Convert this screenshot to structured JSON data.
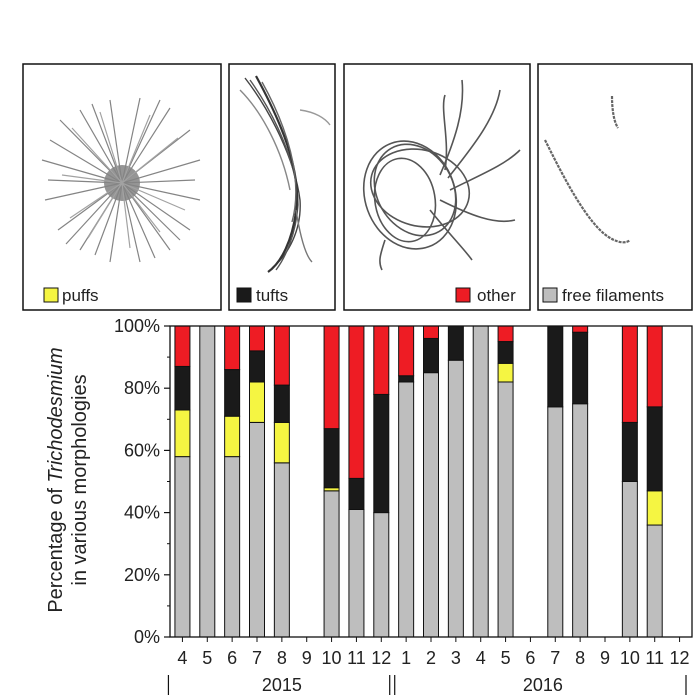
{
  "legend": [
    {
      "label": "puffs",
      "color": "#f5f542"
    },
    {
      "label": "tufts",
      "color": "#1a1a1a"
    },
    {
      "label": "other",
      "color": "#ee1c24"
    },
    {
      "label": "free filaments",
      "color": "#bebebe"
    }
  ],
  "panel_icons": [
    "puff-colony-image",
    "tuft-colony-image",
    "other-colony-image",
    "free-filament-image"
  ],
  "chart_data": {
    "type": "bar",
    "stacked": true,
    "ylabel_line1_prefix": "Percentage of ",
    "ylabel_line1_italic": "Trichodesmium",
    "ylabel_line2": "in various morphologies",
    "yticks": [
      "0%",
      "20%",
      "40%",
      "60%",
      "80%",
      "100%"
    ],
    "ylim": [
      0,
      100
    ],
    "categories": [
      "4",
      "5",
      "6",
      "7",
      "8",
      "9",
      "10",
      "11",
      "12",
      "1",
      "2",
      "3",
      "4",
      "5",
      "6",
      "7",
      "8",
      "9",
      "10",
      "11",
      "12"
    ],
    "years": [
      {
        "label": "2015",
        "start_index": 0,
        "end_index": 8
      },
      {
        "label": "2016",
        "start_index": 9,
        "end_index": 20
      }
    ],
    "series": [
      {
        "name": "free filaments",
        "color": "#bebebe",
        "values": [
          58,
          100,
          58,
          69,
          56,
          null,
          47,
          41,
          40,
          82,
          85,
          89,
          100,
          82,
          null,
          74,
          75,
          null,
          50,
          36,
          null
        ]
      },
      {
        "name": "puffs",
        "color": "#f5f542",
        "values": [
          15,
          0,
          13,
          13,
          13,
          null,
          1,
          0,
          0,
          0,
          0,
          0,
          0,
          6,
          null,
          0,
          0,
          null,
          0,
          11,
          null
        ]
      },
      {
        "name": "tufts",
        "color": "#1a1a1a",
        "values": [
          14,
          0,
          15,
          10,
          12,
          null,
          19,
          10,
          38,
          2,
          11,
          11,
          0,
          7,
          null,
          26,
          23,
          null,
          19,
          27,
          null
        ]
      },
      {
        "name": "other",
        "color": "#ee1c24",
        "values": [
          13,
          0,
          14,
          8,
          19,
          null,
          33,
          49,
          22,
          16,
          4,
          0,
          0,
          5,
          null,
          0,
          2,
          null,
          31,
          26,
          null
        ]
      }
    ]
  }
}
